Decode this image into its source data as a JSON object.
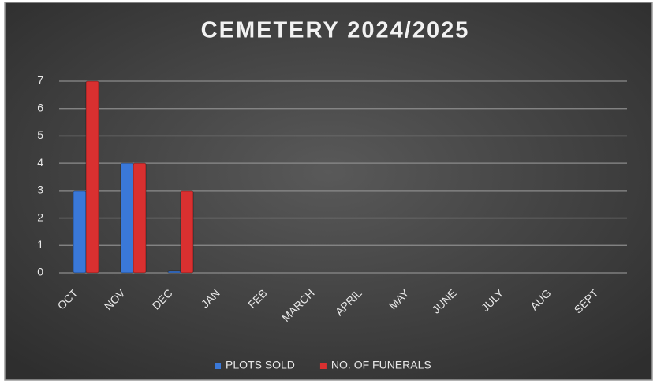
{
  "chart_data": {
    "type": "bar",
    "title": "CEMETERY 2024/2025",
    "categories": [
      "OCT",
      "NOV",
      "DEC",
      "JAN",
      "FEB",
      "MARCH",
      "APRIL",
      "MAY",
      "JUNE",
      "JULY",
      "AUG",
      "SEPT"
    ],
    "series": [
      {
        "name": "PLOTS SOLD",
        "color": "#3a78d8",
        "values": [
          3,
          4,
          0,
          null,
          null,
          null,
          null,
          null,
          null,
          null,
          null,
          null
        ]
      },
      {
        "name": "NO. OF FUNERALS",
        "color": "#d93030",
        "values": [
          7,
          4,
          3,
          null,
          null,
          null,
          null,
          null,
          null,
          null,
          null,
          null
        ]
      }
    ],
    "ylim": [
      0,
      7
    ],
    "yticks": [
      0,
      1,
      2,
      3,
      4,
      5,
      6,
      7
    ],
    "grid": true,
    "legend": "bottom"
  }
}
